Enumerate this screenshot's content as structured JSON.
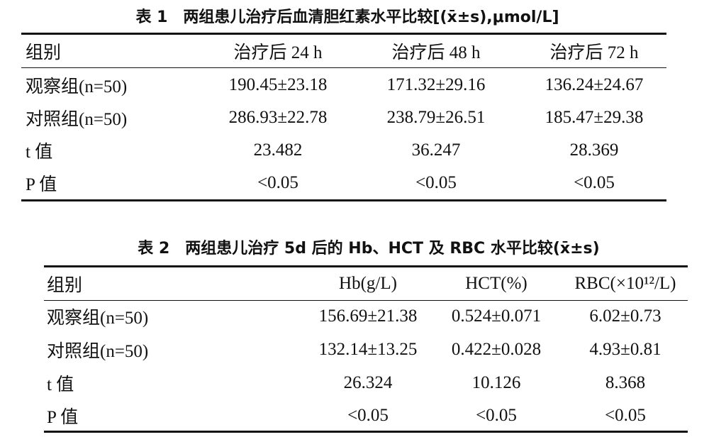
{
  "table1": {
    "title": "表 1　两组患儿治疗后血清胆红素水平比较[(x̄±s),μmol/L]",
    "header": [
      "组别",
      "治疗后 24 h",
      "治疗后 48 h",
      "治疗后 72 h"
    ],
    "rows": [
      [
        "观察组(n=50)",
        "190.45±23.18",
        "171.32±29.16",
        "136.24±24.67"
      ],
      [
        "对照组(n=50)",
        "286.93±22.78",
        "238.79±26.51",
        "185.47±29.38"
      ],
      [
        "t 值",
        "23.482",
        "36.247",
        "28.369"
      ],
      [
        "P 值",
        "<0.05",
        "<0.05",
        "<0.05"
      ]
    ]
  },
  "table2": {
    "title": "表 2　两组患儿治疗 5d 后的 Hb、HCT 及 RBC 水平比较(x̄±s)",
    "header": [
      "组别",
      "Hb(g/L)",
      "HCT(%)",
      "RBC(×10¹²/L)"
    ],
    "rows": [
      [
        "观察组(n=50)",
        "156.69±21.38",
        "0.524±0.071",
        "6.02±0.73"
      ],
      [
        "对照组(n=50)",
        "132.14±13.25",
        "0.422±0.028",
        "4.93±0.81"
      ],
      [
        "t 值",
        "26.324",
        "10.126",
        "8.368"
      ],
      [
        "P 值",
        "<0.05",
        "<0.05",
        "<0.05"
      ]
    ]
  }
}
